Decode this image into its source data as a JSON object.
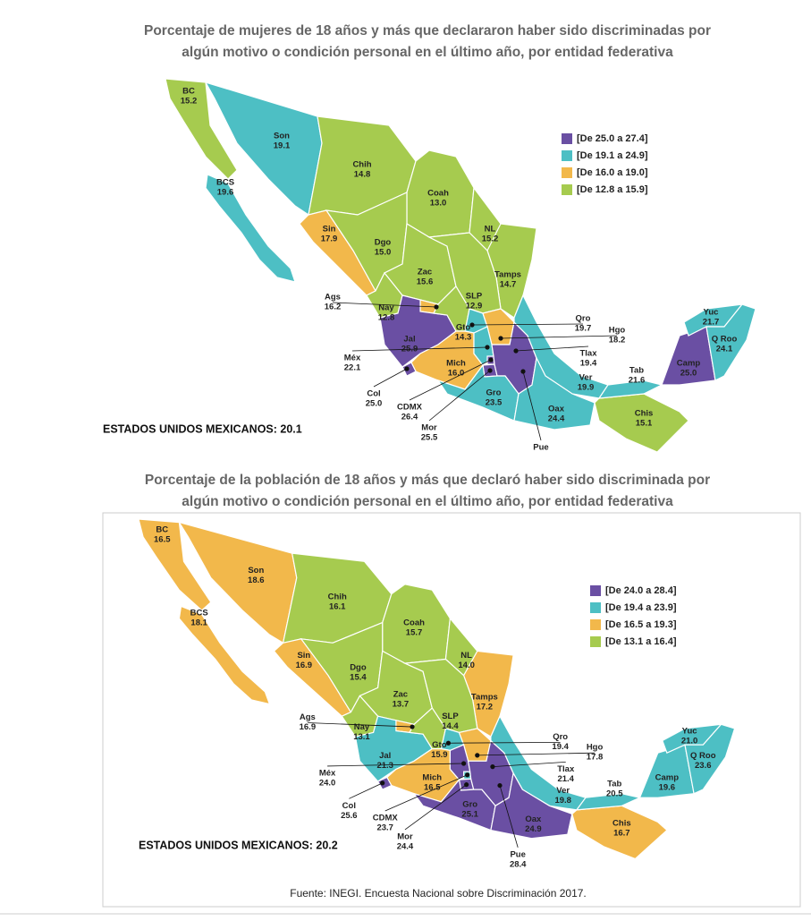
{
  "maps": [
    {
      "title": [
        "Porcentaje de mujeres de 18 años y más que declararon haber sido discriminadas por",
        "algún motivo o condición personal en el último año, por entidad federativa"
      ],
      "legend": [
        {
          "label": "[De 25.0 a 27.4]",
          "color": "#6a4fa3"
        },
        {
          "label": "[De 19.1 a 24.9]",
          "color": "#4dbfc4"
        },
        {
          "label": "[De 16.0 a 19.0]",
          "color": "#f2b84b"
        },
        {
          "label": "[De 12.8 a 15.9]",
          "color": "#a6cb4f"
        }
      ],
      "total": "ESTADOS UNIDOS MEXICANOS: 20.1",
      "states": [
        {
          "name": "BC",
          "value": "15.2",
          "color": "#a6cb4f"
        },
        {
          "name": "BCS",
          "value": "19.6",
          "color": "#4dbfc4"
        },
        {
          "name": "Son",
          "value": "19.1",
          "color": "#4dbfc4"
        },
        {
          "name": "Chih",
          "value": "14.8",
          "color": "#a6cb4f"
        },
        {
          "name": "Coah",
          "value": "13.0",
          "color": "#a6cb4f"
        },
        {
          "name": "NL",
          "value": "15.2",
          "color": "#a6cb4f"
        },
        {
          "name": "Tamps",
          "value": "14.7",
          "color": "#a6cb4f"
        },
        {
          "name": "Sin",
          "value": "17.9",
          "color": "#f2b84b"
        },
        {
          "name": "Dgo",
          "value": "15.0",
          "color": "#a6cb4f"
        },
        {
          "name": "Zac",
          "value": "15.6",
          "color": "#a6cb4f"
        },
        {
          "name": "SLP",
          "value": "12.9",
          "color": "#a6cb4f"
        },
        {
          "name": "Nay",
          "value": "12.8",
          "color": "#a6cb4f"
        },
        {
          "name": "Ags",
          "value": "16.2",
          "color": "#f2b84b"
        },
        {
          "name": "Jal",
          "value": "25.9",
          "color": "#6a4fa3"
        },
        {
          "name": "Gto",
          "value": "14.3",
          "color": "#a6cb4f"
        },
        {
          "name": "Qro",
          "value": "19.7",
          "color": "#4dbfc4"
        },
        {
          "name": "Hgo",
          "value": "18.2",
          "color": "#f2b84b"
        },
        {
          "name": "Mich",
          "value": "16.0",
          "color": "#f2b84b"
        },
        {
          "name": "Méx",
          "value": "22.1",
          "color": "#4dbfc4"
        },
        {
          "name": "Col",
          "value": "25.0",
          "color": "#6a4fa3"
        },
        {
          "name": "CDMX",
          "value": "26.4",
          "color": "#6a4fa3"
        },
        {
          "name": "Mor",
          "value": "25.5",
          "color": "#6a4fa3"
        },
        {
          "name": "Tlax",
          "value": "19.4",
          "color": "#4dbfc4"
        },
        {
          "name": "Pue",
          "value": null,
          "color": "#6a4fa3"
        },
        {
          "name": "Gro",
          "value": "23.5",
          "color": "#4dbfc4"
        },
        {
          "name": "Ver",
          "value": "19.9",
          "color": "#4dbfc4"
        },
        {
          "name": "Oax",
          "value": "24.4",
          "color": "#4dbfc4"
        },
        {
          "name": "Chis",
          "value": "15.1",
          "color": "#a6cb4f"
        },
        {
          "name": "Tab",
          "value": "21.6",
          "color": "#4dbfc4"
        },
        {
          "name": "Camp",
          "value": "25.0",
          "color": "#6a4fa3"
        },
        {
          "name": "Yuc",
          "value": "21.7",
          "color": "#4dbfc4"
        },
        {
          "name": "Q Roo",
          "value": "24.1",
          "color": "#4dbfc4"
        }
      ]
    },
    {
      "title": [
        "Porcentaje de la población de 18 años y más que declaró haber sido discriminada por",
        "algún motivo o condición personal en el último año, por entidad federativa"
      ],
      "legend": [
        {
          "label": "[De 24.0 a 28.4]",
          "color": "#6a4fa3"
        },
        {
          "label": "[De 19.4 a 23.9]",
          "color": "#4dbfc4"
        },
        {
          "label": "[De 16.5 a 19.3]",
          "color": "#f2b84b"
        },
        {
          "label": "[De 13.1 a 16.4]",
          "color": "#a6cb4f"
        }
      ],
      "total": "ESTADOS UNIDOS MEXICANOS: 20.2",
      "states": [
        {
          "name": "BC",
          "value": "16.5",
          "color": "#f2b84b"
        },
        {
          "name": "BCS",
          "value": "18.1",
          "color": "#f2b84b"
        },
        {
          "name": "Son",
          "value": "18.6",
          "color": "#f2b84b"
        },
        {
          "name": "Chih",
          "value": "16.1",
          "color": "#a6cb4f"
        },
        {
          "name": "Coah",
          "value": "15.7",
          "color": "#a6cb4f"
        },
        {
          "name": "NL",
          "value": "14.0",
          "color": "#a6cb4f"
        },
        {
          "name": "Tamps",
          "value": "17.2",
          "color": "#f2b84b"
        },
        {
          "name": "Sin",
          "value": "16.9",
          "color": "#f2b84b"
        },
        {
          "name": "Dgo",
          "value": "15.4",
          "color": "#a6cb4f"
        },
        {
          "name": "Zac",
          "value": "13.7",
          "color": "#a6cb4f"
        },
        {
          "name": "SLP",
          "value": "14.4",
          "color": "#a6cb4f"
        },
        {
          "name": "Nay",
          "value": "13.1",
          "color": "#a6cb4f"
        },
        {
          "name": "Ags",
          "value": "16.9",
          "color": "#f2b84b"
        },
        {
          "name": "Jal",
          "value": "21.3",
          "color": "#4dbfc4"
        },
        {
          "name": "Gto",
          "value": "15.9",
          "color": "#a6cb4f"
        },
        {
          "name": "Qro",
          "value": "19.4",
          "color": "#4dbfc4"
        },
        {
          "name": "Hgo",
          "value": "17.8",
          "color": "#f2b84b"
        },
        {
          "name": "Mich",
          "value": "16.5",
          "color": "#f2b84b"
        },
        {
          "name": "Méx",
          "value": "24.0",
          "color": "#6a4fa3"
        },
        {
          "name": "Col",
          "value": "25.6",
          "color": "#6a4fa3"
        },
        {
          "name": "CDMX",
          "value": "23.7",
          "color": "#4dbfc4"
        },
        {
          "name": "Mor",
          "value": "24.4",
          "color": "#6a4fa3"
        },
        {
          "name": "Tlax",
          "value": "21.4",
          "color": "#4dbfc4"
        },
        {
          "name": "Pue",
          "value": "28.4",
          "color": "#6a4fa3"
        },
        {
          "name": "Gro",
          "value": "25.1",
          "color": "#6a4fa3"
        },
        {
          "name": "Ver",
          "value": "19.8",
          "color": "#4dbfc4"
        },
        {
          "name": "Oax",
          "value": "24.9",
          "color": "#6a4fa3"
        },
        {
          "name": "Chis",
          "value": "16.7",
          "color": "#f2b84b"
        },
        {
          "name": "Tab",
          "value": "20.5",
          "color": "#4dbfc4"
        },
        {
          "name": "Camp",
          "value": "19.6",
          "color": "#4dbfc4"
        },
        {
          "name": "Yuc",
          "value": "21.0",
          "color": "#4dbfc4"
        },
        {
          "name": "Q Roo",
          "value": "23.6",
          "color": "#4dbfc4"
        }
      ]
    }
  ],
  "source": "Fuente: INEGI. Encuesta Nacional sobre Discriminación 2017."
}
